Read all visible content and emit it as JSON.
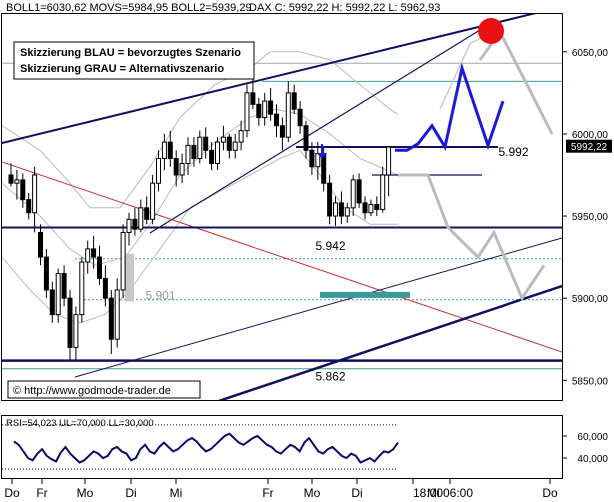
{
  "header": {
    "indicators": "BOLL1=6030,62 MOVS=5984,95 BOLL2=5939,29",
    "quote": "DAX C: 5992,22 H: 5992,22 L: 5962,93"
  },
  "legend": {
    "blue": "Skizzierung BLAU = bevorzugtes Szenario",
    "grey": "Skizzierung GRAU = Alternativszenario"
  },
  "copyright": "© http://www.godmode-trader.de",
  "last_price_tag": "5992,22",
  "rsi": {
    "header": "RSI=54,023 UL=70,000 LL=30,000",
    "ticks": [
      "60,000",
      "40,000"
    ],
    "ul": 70,
    "ll": 30,
    "ylim": [
      22,
      78
    ],
    "values": [
      55,
      52,
      46,
      40,
      38,
      44,
      48,
      42,
      39,
      37,
      45,
      50,
      44,
      40,
      36,
      38,
      42,
      46,
      44,
      40,
      42,
      48,
      50,
      46,
      44,
      38,
      40,
      48,
      52,
      46,
      44,
      50,
      54,
      50,
      46,
      48,
      52,
      56,
      58,
      55,
      50,
      46,
      48,
      52,
      56,
      60,
      62,
      58,
      54,
      52,
      55,
      58,
      60,
      56,
      52,
      50,
      46,
      44,
      48,
      52,
      50,
      46,
      54,
      58,
      52,
      46,
      44,
      48,
      50,
      46,
      42,
      40,
      44,
      42,
      36,
      38,
      40,
      37,
      42,
      46,
      45,
      48,
      54
    ]
  },
  "colors": {
    "blue_scenario": "#1a1ad6",
    "grey_scenario": "#bbbbbb",
    "candles": "#000000",
    "bollinger": "#bbbbbb",
    "support_teal": "#3a9a9a",
    "red_line": "#c83232",
    "target_dot": "#e81010"
  },
  "chart_data": {
    "type": "candlestick",
    "instrument": "DAX",
    "y_ticks": [
      "6050,00",
      "6000,00",
      "5950,00",
      "5900,00",
      "5850,00"
    ],
    "ylim": [
      5838,
      6073
    ],
    "x_ticks": [
      "Do",
      "Fr",
      "Mo",
      "Di",
      "Mi",
      "Fr",
      "Mo",
      "Di",
      "18:00",
      "Mi 06:00",
      "Do"
    ],
    "levels": [
      {
        "label": "5.992",
        "value": 5992
      },
      {
        "label": "5.942",
        "value": 5942
      },
      {
        "label": "5.901",
        "value": 5901
      },
      {
        "label": "5.862",
        "value": 5862
      }
    ],
    "candles": [
      {
        "o": 5975,
        "h": 5982,
        "l": 5968,
        "c": 5970
      },
      {
        "o": 5970,
        "h": 5978,
        "l": 5960,
        "c": 5972
      },
      {
        "o": 5972,
        "h": 5976,
        "l": 5955,
        "c": 5960
      },
      {
        "o": 5960,
        "h": 5964,
        "l": 5948,
        "c": 5952
      },
      {
        "o": 5952,
        "h": 5980,
        "l": 5940,
        "c": 5975
      },
      {
        "o": 5940,
        "h": 5945,
        "l": 5920,
        "c": 5925
      },
      {
        "o": 5925,
        "h": 5930,
        "l": 5900,
        "c": 5905
      },
      {
        "o": 5905,
        "h": 5910,
        "l": 5885,
        "c": 5890
      },
      {
        "o": 5890,
        "h": 5918,
        "l": 5885,
        "c": 5915
      },
      {
        "o": 5915,
        "h": 5920,
        "l": 5895,
        "c": 5900
      },
      {
        "o": 5900,
        "h": 5905,
        "l": 5862,
        "c": 5870
      },
      {
        "o": 5870,
        "h": 5895,
        "l": 5862,
        "c": 5890
      },
      {
        "o": 5890,
        "h": 5925,
        "l": 5885,
        "c": 5922
      },
      {
        "o": 5922,
        "h": 5935,
        "l": 5915,
        "c": 5930
      },
      {
        "o": 5930,
        "h": 5938,
        "l": 5918,
        "c": 5925
      },
      {
        "o": 5925,
        "h": 5932,
        "l": 5908,
        "c": 5912
      },
      {
        "o": 5912,
        "h": 5920,
        "l": 5895,
        "c": 5900
      },
      {
        "o": 5900,
        "h": 5905,
        "l": 5866,
        "c": 5875
      },
      {
        "o": 5875,
        "h": 5912,
        "l": 5870,
        "c": 5905
      },
      {
        "o": 5905,
        "h": 5945,
        "l": 5900,
        "c": 5940
      },
      {
        "o": 5940,
        "h": 5952,
        "l": 5932,
        "c": 5948
      },
      {
        "o": 5948,
        "h": 5955,
        "l": 5938,
        "c": 5942
      },
      {
        "o": 5942,
        "h": 5960,
        "l": 5940,
        "c": 5955
      },
      {
        "o": 5955,
        "h": 5962,
        "l": 5945,
        "c": 5948
      },
      {
        "o": 5948,
        "h": 5975,
        "l": 5945,
        "c": 5970
      },
      {
        "o": 5970,
        "h": 5990,
        "l": 5965,
        "c": 5985
      },
      {
        "o": 5985,
        "h": 6000,
        "l": 5978,
        "c": 5995
      },
      {
        "o": 5995,
        "h": 6002,
        "l": 5980,
        "c": 5985
      },
      {
        "o": 5985,
        "h": 5990,
        "l": 5968,
        "c": 5975
      },
      {
        "o": 5975,
        "h": 5988,
        "l": 5970,
        "c": 5982
      },
      {
        "o": 5982,
        "h": 5998,
        "l": 5975,
        "c": 5993
      },
      {
        "o": 5993,
        "h": 5998,
        "l": 5980,
        "c": 5985
      },
      {
        "o": 5985,
        "h": 6002,
        "l": 5982,
        "c": 5998
      },
      {
        "o": 5998,
        "h": 6004,
        "l": 5985,
        "c": 5990
      },
      {
        "o": 5990,
        "h": 5995,
        "l": 5978,
        "c": 5982
      },
      {
        "o": 5982,
        "h": 5998,
        "l": 5978,
        "c": 5995
      },
      {
        "o": 5995,
        "h": 6005,
        "l": 5990,
        "c": 5998
      },
      {
        "o": 5998,
        "h": 6000,
        "l": 5985,
        "c": 5990
      },
      {
        "o": 5990,
        "h": 6000,
        "l": 5985,
        "c": 5995
      },
      {
        "o": 5995,
        "h": 6008,
        "l": 5990,
        "c": 6002
      },
      {
        "o": 6002,
        "h": 6030,
        "l": 5998,
        "c": 6025
      },
      {
        "o": 6025,
        "h": 6035,
        "l": 6015,
        "c": 6018
      },
      {
        "o": 6018,
        "h": 6022,
        "l": 6005,
        "c": 6010
      },
      {
        "o": 6010,
        "h": 6025,
        "l": 6005,
        "c": 6020
      },
      {
        "o": 6020,
        "h": 6028,
        "l": 6008,
        "c": 6012
      },
      {
        "o": 6012,
        "h": 6018,
        "l": 5998,
        "c": 6005
      },
      {
        "o": 6005,
        "h": 6010,
        "l": 5990,
        "c": 5998
      },
      {
        "o": 5998,
        "h": 6032,
        "l": 5995,
        "c": 6025
      },
      {
        "o": 6025,
        "h": 6030,
        "l": 6012,
        "c": 6015
      },
      {
        "o": 6015,
        "h": 6020,
        "l": 6000,
        "c": 6005
      },
      {
        "o": 6005,
        "h": 6008,
        "l": 5985,
        "c": 5990
      },
      {
        "o": 5990,
        "h": 5995,
        "l": 5975,
        "c": 5980
      },
      {
        "o": 5980,
        "h": 5995,
        "l": 5972,
        "c": 5988
      },
      {
        "o": 5988,
        "h": 5992,
        "l": 5965,
        "c": 5970
      },
      {
        "o": 5970,
        "h": 5975,
        "l": 5945,
        "c": 5950
      },
      {
        "o": 5950,
        "h": 5962,
        "l": 5944,
        "c": 5958
      },
      {
        "o": 5958,
        "h": 5965,
        "l": 5945,
        "c": 5950
      },
      {
        "o": 5950,
        "h": 5958,
        "l": 5946,
        "c": 5955
      },
      {
        "o": 5955,
        "h": 5975,
        "l": 5950,
        "c": 5972
      },
      {
        "o": 5972,
        "h": 5976,
        "l": 5955,
        "c": 5958
      },
      {
        "o": 5958,
        "h": 5962,
        "l": 5948,
        "c": 5952
      },
      {
        "o": 5952,
        "h": 5960,
        "l": 5950,
        "c": 5957
      },
      {
        "o": 5957,
        "h": 5962,
        "l": 5950,
        "c": 5954
      },
      {
        "o": 5954,
        "h": 5980,
        "l": 5952,
        "c": 5975
      },
      {
        "o": 5975,
        "h": 5992,
        "l": 5962,
        "c": 5992
      }
    ]
  }
}
